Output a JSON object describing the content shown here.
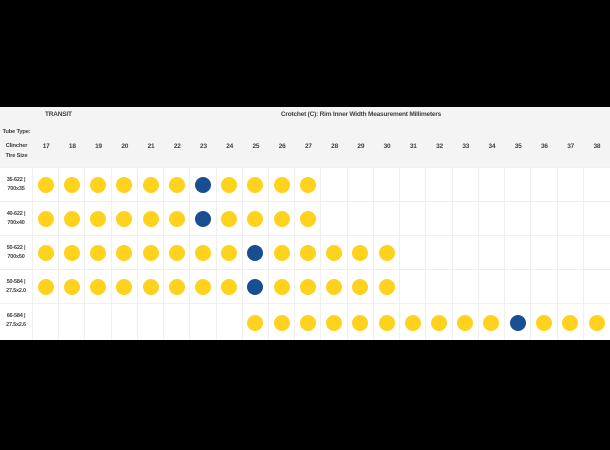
{
  "titles": {
    "group": "TRANSIT",
    "measurement": "Crotchet (C): Rim Inner Width Measurement Millimeters"
  },
  "corner_header": {
    "line1": "Tube Type:",
    "line2": "Clincher",
    "line3": "Tire Size"
  },
  "colors": {
    "letterbox": "#000000",
    "header_bg": "#f4f4f4",
    "cell_bg": "#ffffff",
    "grid_border": "#f0f0f0",
    "text": "#414042",
    "yellow_dot": "#ffd21e",
    "blue_dot": "#1a4e93"
  },
  "chart_data": {
    "type": "table",
    "title": "Crotchet (C): Rim Inner Width Measurement Millimeters",
    "group_label": "TRANSIT",
    "corner_header": [
      "Tube Type:",
      "Clincher",
      "Tire Size"
    ],
    "columns": [
      17,
      18,
      19,
      20,
      21,
      22,
      23,
      24,
      25,
      26,
      27,
      28,
      29,
      30,
      31,
      32,
      33,
      34,
      35,
      36,
      37,
      38
    ],
    "rows": [
      {
        "size_etrto": "35-622 |",
        "size_common": "700x35",
        "dot_start": 17,
        "dot_end": 27,
        "blue_dot_at": 23
      },
      {
        "size_etrto": "40-622 |",
        "size_common": "700x40",
        "dot_start": 17,
        "dot_end": 27,
        "blue_dot_at": 23
      },
      {
        "size_etrto": "50-622 |",
        "size_common": "700x50",
        "dot_start": 17,
        "dot_end": 30,
        "blue_dot_at": 25
      },
      {
        "size_etrto": "50-584 |",
        "size_common": "27.5x2.0",
        "dot_start": 17,
        "dot_end": 30,
        "blue_dot_at": 25
      },
      {
        "size_etrto": "66-584 |",
        "size_common": "27.5x2.6",
        "dot_start": 25,
        "dot_end": 38,
        "blue_dot_at": 35
      }
    ]
  }
}
